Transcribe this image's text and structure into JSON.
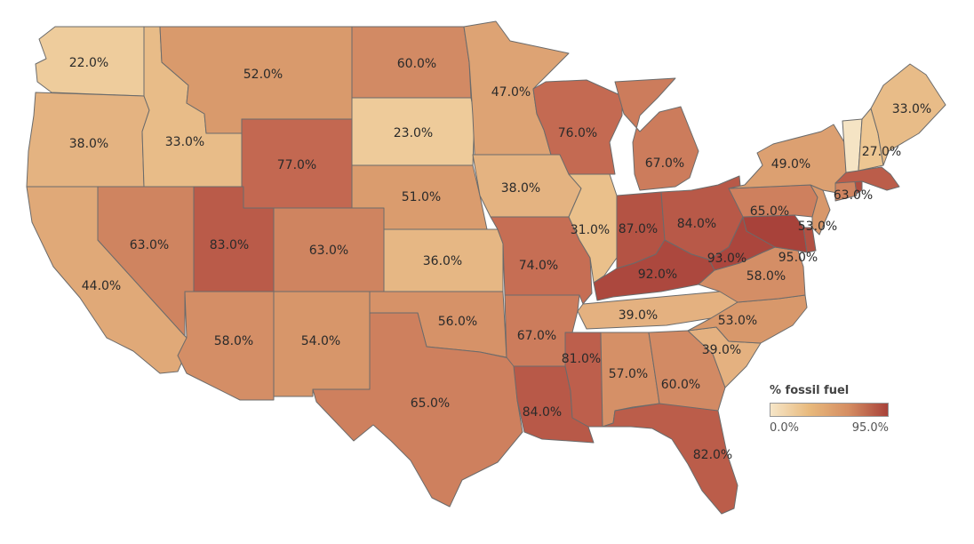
{
  "legend": {
    "title": "% fossil fuel",
    "min_label": "0.0%",
    "max_label": "95.0%",
    "min_value": 0,
    "max_value": 95,
    "color_low": "#f6e6c8",
    "color_high": "#a8423a"
  },
  "states": [
    {
      "id": "WA",
      "label": "22.0%",
      "value": 22
    },
    {
      "id": "OR",
      "label": "38.0%",
      "value": 38
    },
    {
      "id": "CA",
      "label": "44.0%",
      "value": 44
    },
    {
      "id": "ID",
      "label": "33.0%",
      "value": 33
    },
    {
      "id": "NV",
      "label": "63.0%",
      "value": 63
    },
    {
      "id": "MT",
      "label": "52.0%",
      "value": 52
    },
    {
      "id": "WY",
      "label": "77.0%",
      "value": 77
    },
    {
      "id": "UT",
      "label": "83.0%",
      "value": 83
    },
    {
      "id": "AZ",
      "label": "58.0%",
      "value": 58
    },
    {
      "id": "CO",
      "label": "63.0%",
      "value": 63
    },
    {
      "id": "NM",
      "label": "54.0%",
      "value": 54
    },
    {
      "id": "ND",
      "label": "60.0%",
      "value": 60
    },
    {
      "id": "SD",
      "label": "23.0%",
      "value": 23
    },
    {
      "id": "NE",
      "label": "51.0%",
      "value": 51
    },
    {
      "id": "KS",
      "label": "36.0%",
      "value": 36
    },
    {
      "id": "OK",
      "label": "56.0%",
      "value": 56
    },
    {
      "id": "TX",
      "label": "65.0%",
      "value": 65
    },
    {
      "id": "MN",
      "label": "47.0%",
      "value": 47
    },
    {
      "id": "IA",
      "label": "38.0%",
      "value": 38
    },
    {
      "id": "MO",
      "label": "74.0%",
      "value": 74
    },
    {
      "id": "AR",
      "label": "67.0%",
      "value": 67
    },
    {
      "id": "LA",
      "label": "84.0%",
      "value": 84
    },
    {
      "id": "WI",
      "label": "76.0%",
      "value": 76
    },
    {
      "id": "IL",
      "label": "31.0%",
      "value": 31
    },
    {
      "id": "MI",
      "label": "67.0%",
      "value": 67
    },
    {
      "id": "IN",
      "label": "87.0%",
      "value": 87
    },
    {
      "id": "OH",
      "label": "84.0%",
      "value": 84
    },
    {
      "id": "KY",
      "label": "92.0%",
      "value": 92
    },
    {
      "id": "TN",
      "label": "39.0%",
      "value": 39
    },
    {
      "id": "MS",
      "label": "81.0%",
      "value": 81
    },
    {
      "id": "AL",
      "label": "57.0%",
      "value": 57
    },
    {
      "id": "GA",
      "label": "60.0%",
      "value": 60
    },
    {
      "id": "FL",
      "label": "82.0%",
      "value": 82
    },
    {
      "id": "SC",
      "label": "39.0%",
      "value": 39
    },
    {
      "id": "NC",
      "label": "53.0%",
      "value": 53
    },
    {
      "id": "VA",
      "label": "58.0%",
      "value": 58
    },
    {
      "id": "WV",
      "label": "93.0%",
      "value": 93
    },
    {
      "id": "MD",
      "label": "95.0%",
      "value": 95
    },
    {
      "id": "DE",
      "label": "",
      "value": 88
    },
    {
      "id": "PA",
      "label": "65.0%",
      "value": 65
    },
    {
      "id": "NJ",
      "label": "53.0%",
      "value": 53
    },
    {
      "id": "NY",
      "label": "49.0%",
      "value": 49
    },
    {
      "id": "CT",
      "label": "63.0%",
      "value": 63
    },
    {
      "id": "RI",
      "label": "",
      "value": 90
    },
    {
      "id": "MA",
      "label": "",
      "value": 82
    },
    {
      "id": "VT",
      "label": "",
      "value": 2
    },
    {
      "id": "NH",
      "label": "27.0%",
      "value": 27
    },
    {
      "id": "ME",
      "label": "33.0%",
      "value": 33
    }
  ]
}
